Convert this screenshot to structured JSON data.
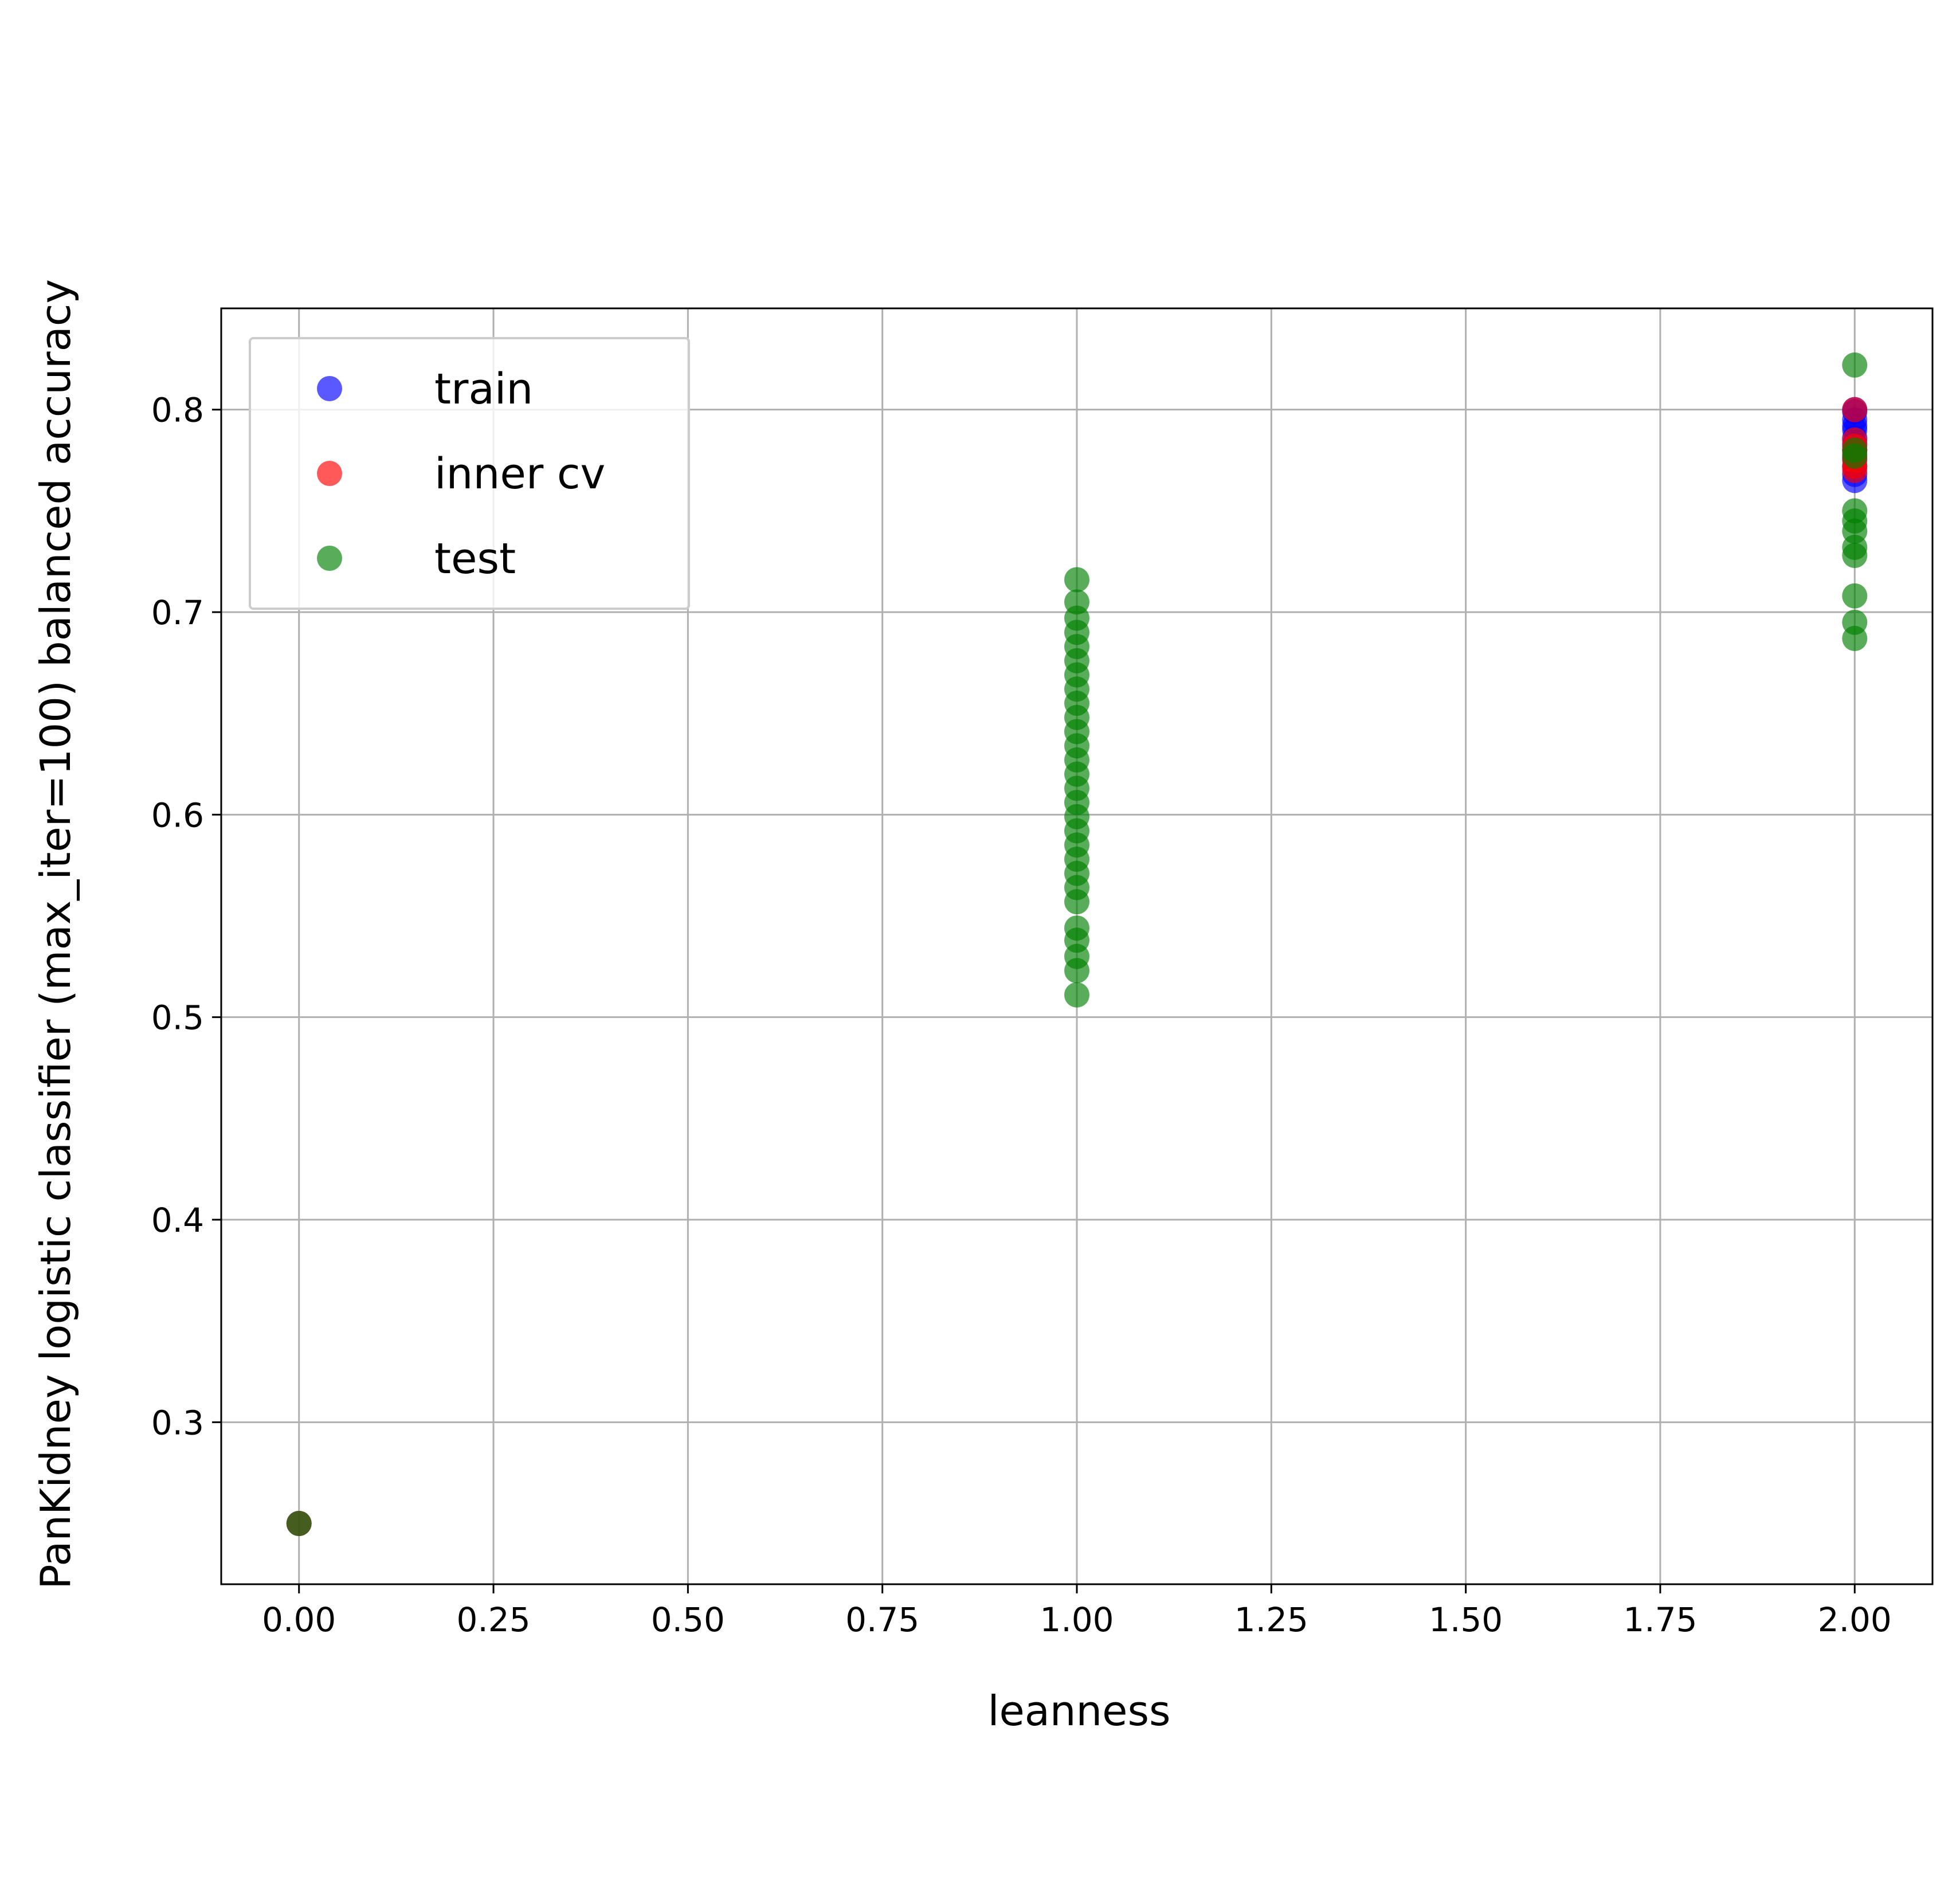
{
  "chart_data": {
    "type": "scatter",
    "xlabel": "leanness",
    "ylabel": "PanKidney logistic classifier (max_iter=100) balanced accuracy",
    "xlim": [
      -0.1,
      2.1
    ],
    "ylim": [
      0.22,
      0.85
    ],
    "xticks": [
      "0.00",
      "0.25",
      "0.50",
      "0.75",
      "1.00",
      "1.25",
      "1.50",
      "1.75",
      "2.00"
    ],
    "yticks": [
      "0.3",
      "0.4",
      "0.5",
      "0.6",
      "0.7",
      "0.8"
    ],
    "grid": true,
    "legend_position": "top-left",
    "series": [
      {
        "name": "train",
        "color": "#0000ff",
        "points": [
          [
            0,
            0.25
          ],
          [
            2,
            0.8
          ],
          [
            2,
            0.799
          ],
          [
            2,
            0.795
          ],
          [
            2,
            0.792
          ],
          [
            2,
            0.79
          ],
          [
            2,
            0.786
          ],
          [
            2,
            0.783
          ],
          [
            2,
            0.78
          ],
          [
            2,
            0.776
          ],
          [
            2,
            0.772
          ],
          [
            2,
            0.768
          ],
          [
            2,
            0.765
          ]
        ]
      },
      {
        "name": "inner cv",
        "color": "#ff0000",
        "points": [
          [
            0,
            0.25
          ],
          [
            2,
            0.8
          ],
          [
            2,
            0.785
          ],
          [
            2,
            0.782
          ],
          [
            2,
            0.78
          ],
          [
            2,
            0.778
          ],
          [
            2,
            0.775
          ],
          [
            2,
            0.772
          ],
          [
            2,
            0.77
          ]
        ]
      },
      {
        "name": "test",
        "color": "#008000",
        "points": [
          [
            0,
            0.25
          ],
          [
            1,
            0.716
          ],
          [
            1,
            0.705
          ],
          [
            1,
            0.697
          ],
          [
            1,
            0.69
          ],
          [
            1,
            0.683
          ],
          [
            1,
            0.676
          ],
          [
            1,
            0.669
          ],
          [
            1,
            0.662
          ],
          [
            1,
            0.655
          ],
          [
            1,
            0.648
          ],
          [
            1,
            0.641
          ],
          [
            1,
            0.634
          ],
          [
            1,
            0.627
          ],
          [
            1,
            0.62
          ],
          [
            1,
            0.613
          ],
          [
            1,
            0.606
          ],
          [
            1,
            0.599
          ],
          [
            1,
            0.592
          ],
          [
            1,
            0.585
          ],
          [
            1,
            0.578
          ],
          [
            1,
            0.571
          ],
          [
            1,
            0.564
          ],
          [
            1,
            0.557
          ],
          [
            1,
            0.544
          ],
          [
            1,
            0.538
          ],
          [
            1,
            0.53
          ],
          [
            1,
            0.523
          ],
          [
            1,
            0.511
          ],
          [
            2,
            0.822
          ],
          [
            2,
            0.78
          ],
          [
            2,
            0.777
          ],
          [
            2,
            0.75
          ],
          [
            2,
            0.745
          ],
          [
            2,
            0.74
          ],
          [
            2,
            0.732
          ],
          [
            2,
            0.728
          ],
          [
            2,
            0.708
          ],
          [
            2,
            0.695
          ],
          [
            2,
            0.687
          ]
        ]
      }
    ]
  }
}
